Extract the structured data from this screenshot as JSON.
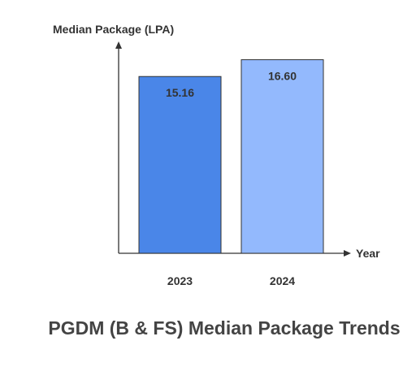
{
  "chart_data": {
    "type": "bar",
    "title": "PGDM (B & FS) Median Package Trends",
    "xlabel": "Year",
    "ylabel": "Median Package (LPA)",
    "categories": [
      "2023",
      "2024"
    ],
    "values": [
      15.16,
      16.6
    ],
    "value_labels": [
      "15.16",
      "16.60"
    ],
    "bar_colors": [
      "#4a86e8",
      "#93b9fd"
    ],
    "ylim": [
      0,
      18.1
    ],
    "grid": false,
    "legend": "none"
  }
}
